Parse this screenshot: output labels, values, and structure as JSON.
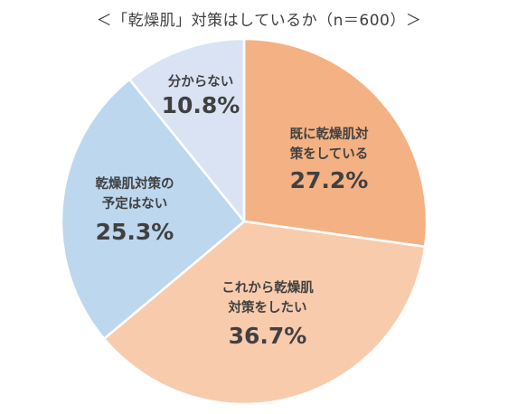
{
  "chart_data": {
    "type": "pie",
    "title": "＜「乾燥肌」対策はしているか（n＝600）＞",
    "slices": [
      {
        "label_lines": [
          "既に乾燥肌対",
          "策をしている"
        ],
        "value": 27.2,
        "value_label": "27.2%",
        "color": "#f4b183"
      },
      {
        "label_lines": [
          "これから乾燥肌",
          "対策をしたい"
        ],
        "value": 36.7,
        "value_label": "36.7%",
        "color": "#f8cbad"
      },
      {
        "label_lines": [
          "乾燥肌対策の",
          "予定はない"
        ],
        "value": 25.3,
        "value_label": "25.3%",
        "color": "#bdd7ee"
      },
      {
        "label_lines": [
          "分からない"
        ],
        "value": 10.8,
        "value_label": "10.8%",
        "color": "#dae3f3"
      }
    ],
    "start_angle": "12 o'clock",
    "direction": "clockwise",
    "legend": "none"
  }
}
